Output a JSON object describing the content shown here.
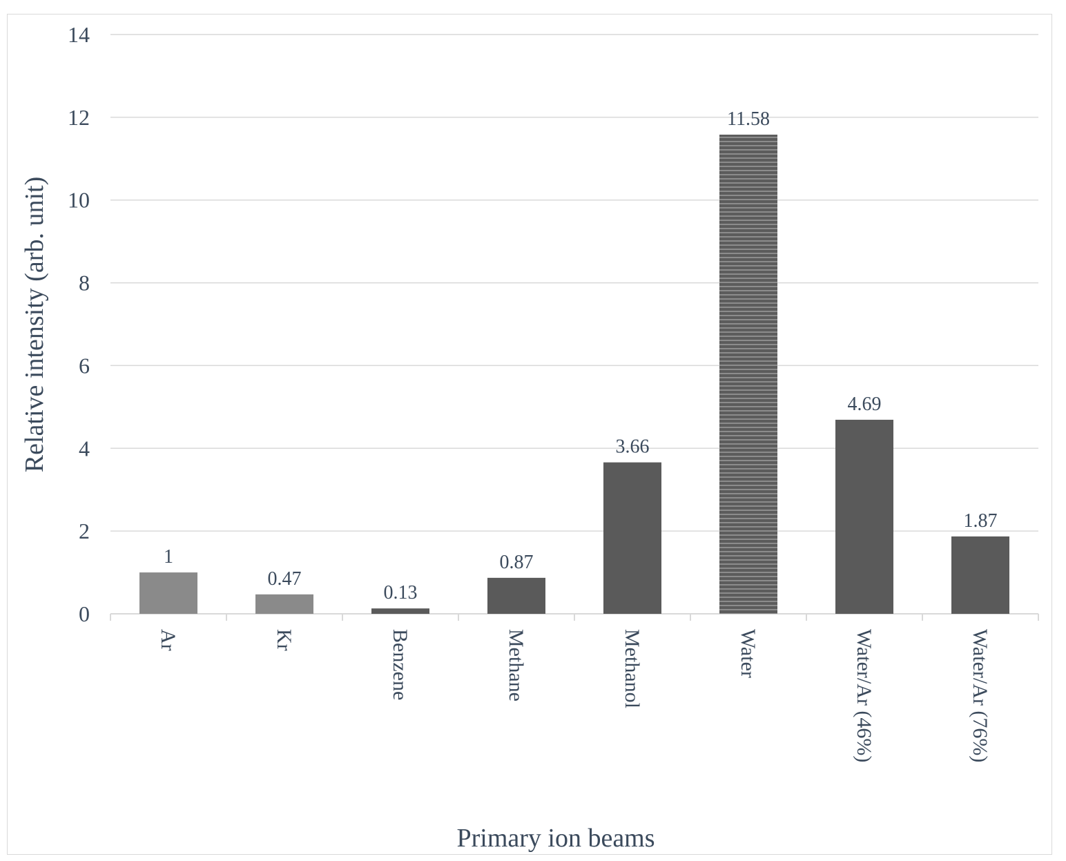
{
  "chart_data": {
    "type": "bar",
    "categories": [
      "Ar",
      "Kr",
      "Benzene",
      "Methane",
      "Methanol",
      "Water",
      "Water/Ar (46%)",
      "Water/Ar (76%)"
    ],
    "values": [
      1,
      0.47,
      0.13,
      0.87,
      3.66,
      11.58,
      4.69,
      1.87
    ],
    "data_labels": [
      "1",
      "0.47",
      "0.13",
      "0.87",
      "3.66",
      "11.58",
      "4.69",
      "1.87"
    ],
    "title": "",
    "xlabel": "Primary ion beams",
    "ylabel": "Relative intensity (arb. unit)",
    "ylim": [
      0,
      14
    ],
    "yticks": [
      "0",
      "2",
      "4",
      "6",
      "8",
      "10",
      "12",
      "14"
    ],
    "grid": true,
    "legend": "none",
    "colors": {
      "light_bar": "#8a8a8a",
      "dark_bar": "#5a5a5a",
      "water_bar": "#6a6a6a",
      "grid": "#d9d9d9",
      "text": "#3b4a5c"
    }
  }
}
